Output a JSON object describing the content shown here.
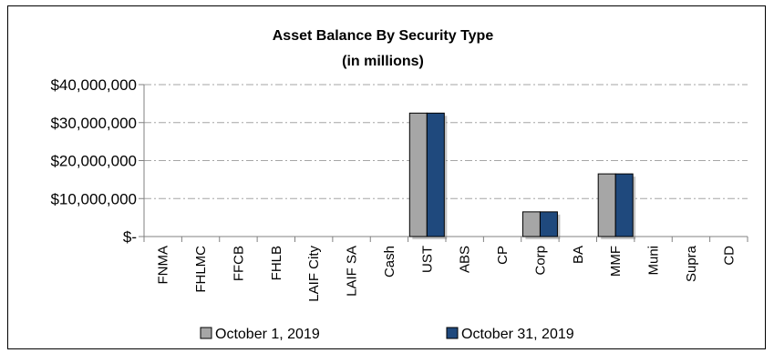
{
  "chart_data": {
    "type": "bar",
    "title": "Asset Balance By Security Type",
    "subtitle": "(in millions)",
    "categories": [
      "FNMA",
      "FHLMC",
      "FFCB",
      "FHLB",
      "LAIF City",
      "LAIF SA",
      "Cash",
      "UST",
      "ABS",
      "CP",
      "Corp",
      "BA",
      "MMF",
      "Muni",
      "Supra",
      "CD"
    ],
    "series": [
      {
        "name": "October 1, 2019",
        "color": "#a6a6a6",
        "values": [
          0,
          0,
          0,
          0,
          0,
          0,
          0,
          32500000,
          0,
          0,
          6500000,
          0,
          16500000,
          0,
          0,
          0
        ]
      },
      {
        "name": "October 31, 2019",
        "color": "#1f497d",
        "values": [
          0,
          0,
          0,
          0,
          0,
          0,
          0,
          32500000,
          0,
          0,
          6500000,
          0,
          16500000,
          0,
          0,
          0
        ]
      }
    ],
    "ylim": [
      0,
      40000000
    ],
    "yticks": [
      0,
      10000000,
      20000000,
      30000000,
      40000000
    ],
    "ytick_labels": [
      "$-",
      "$10,000,000",
      "$20,000,000",
      "$30,000,000",
      "$40,000,000"
    ],
    "grid": true,
    "legend_position": "bottom"
  }
}
